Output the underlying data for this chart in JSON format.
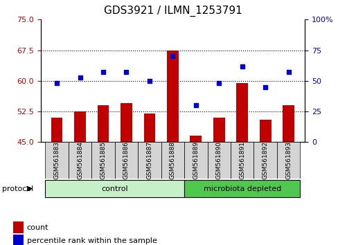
{
  "title": "GDS3921 / ILMN_1253791",
  "samples": [
    "GSM561883",
    "GSM561884",
    "GSM561885",
    "GSM561886",
    "GSM561887",
    "GSM561888",
    "GSM561889",
    "GSM561890",
    "GSM561891",
    "GSM561892",
    "GSM561893"
  ],
  "bar_values": [
    51.0,
    52.5,
    54.0,
    54.5,
    52.0,
    67.5,
    46.5,
    51.0,
    59.5,
    50.5,
    54.0
  ],
  "dot_values": [
    48,
    53,
    57,
    57,
    50,
    70,
    30,
    48,
    62,
    45,
    57
  ],
  "groups": [
    {
      "label": "control",
      "indices": [
        0,
        1,
        2,
        3,
        4,
        5
      ],
      "color": "#c8f0c8"
    },
    {
      "label": "microbiota depleted",
      "indices": [
        6,
        7,
        8,
        9,
        10
      ],
      "color": "#50c850"
    }
  ],
  "ylim_left": [
    45,
    75
  ],
  "ylim_right": [
    0,
    100
  ],
  "yticks_left": [
    45,
    52.5,
    60,
    67.5,
    75
  ],
  "yticks_right": [
    0,
    25,
    50,
    75,
    100
  ],
  "bar_color": "#c00000",
  "dot_color": "#0000cd",
  "grid_color": "#000000",
  "bg_color": "#ffffff",
  "plot_bg": "#ffffff",
  "legend_count_label": "count",
  "legend_pct_label": "percentile rank within the sample",
  "protocol_label": "protocol",
  "title_fontsize": 11,
  "tick_fontsize": 8,
  "label_fontsize": 8
}
